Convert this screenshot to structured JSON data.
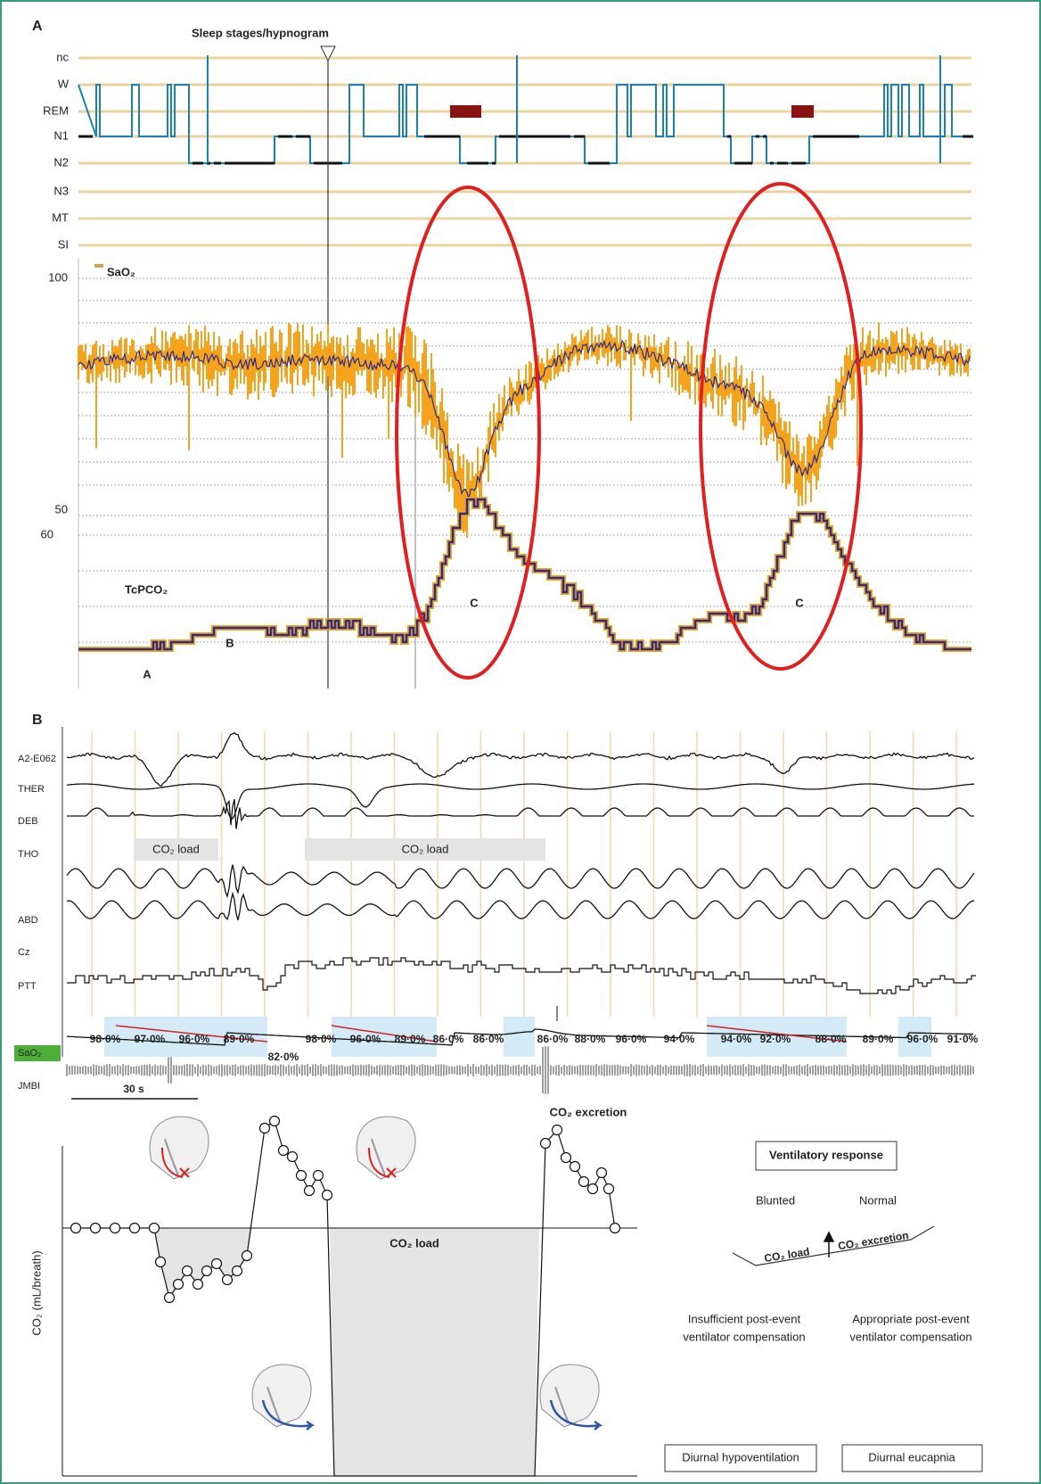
{
  "panel_a": {
    "label": "A",
    "hypnogram_title": "Sleep stages/hypnogram",
    "stages": [
      "nc",
      "W",
      "REM",
      "N1",
      "N2",
      "N3",
      "MT",
      "SI"
    ],
    "sao2_label": "SaO₂",
    "sao2_ticks": [
      "100",
      "50"
    ],
    "tcpco2_tick": "60",
    "tcpco2_label": "TcPCO₂",
    "annotations": [
      "A",
      "B",
      "C",
      "C"
    ]
  },
  "panel_b": {
    "label": "B",
    "channels": [
      "A2-E062",
      "THER",
      "DEB",
      "THO",
      "ABD",
      "Cz",
      "PTT",
      "SaO₂",
      "JMBI"
    ],
    "co2_load_labels": [
      "CO₂ load",
      "CO₂ load"
    ],
    "sao2_readings": [
      "98·0%",
      "97·0%",
      "96·0%",
      "89·0%",
      "82·0%",
      "98·0%",
      "96·0%",
      "89·0%",
      "86·0%",
      "86·0%",
      "86·0%",
      "88·0%",
      "96·0%",
      "94·0%",
      "94·0%",
      "92·0%",
      "88·0%",
      "89·0%",
      "96·0%",
      "91·0%"
    ],
    "scale_bar": "30 s"
  },
  "panel_c": {
    "excretion_label": "CO₂ excretion",
    "y_axis_label": "CO₂ (mL/breath)",
    "load_label": "CO₂ load",
    "ventilatory_title": "Ventilatory response",
    "blunted": "Blunted",
    "normal": "Normal",
    "diagram_load": "CO₂ load",
    "diagram_excretion": "CO₂ excretion",
    "insufficient": [
      "Insufficient post-event",
      "ventilator compensation"
    ],
    "appropriate": [
      "Appropriate post-event",
      "ventilator compensation"
    ],
    "outcome_blunted": "Diurnal hypoventilation",
    "outcome_normal": "Diurnal eucapnia"
  }
}
